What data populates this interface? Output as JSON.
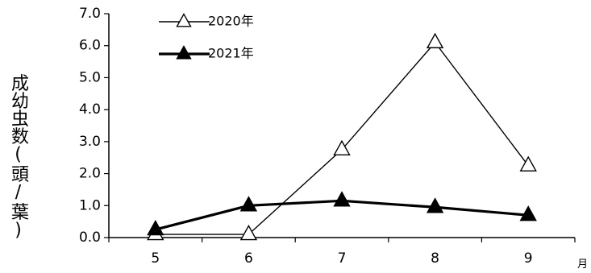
{
  "chart_data": {
    "type": "line",
    "title": "",
    "xlabel": "",
    "x_unit": "月",
    "ylabel": "成幼虫数(頭/葉)",
    "categories": [
      "5",
      "6",
      "7",
      "8",
      "9"
    ],
    "ylim": [
      0,
      7
    ],
    "y_ticks": [
      "0.0",
      "1.0",
      "2.0",
      "3.0",
      "4.0",
      "5.0",
      "6.0",
      "7.0"
    ],
    "grid": false,
    "legend_position": "top-left",
    "series": [
      {
        "name": "2020年",
        "marker": "open-triangle",
        "line_weight": "thin",
        "color": "#000000",
        "values": [
          0.1,
          0.1,
          2.75,
          6.1,
          2.25
        ]
      },
      {
        "name": "2021年",
        "marker": "filled-triangle",
        "line_weight": "thick",
        "color": "#000000",
        "values": [
          0.25,
          1.0,
          1.15,
          0.95,
          0.7
        ]
      }
    ]
  }
}
